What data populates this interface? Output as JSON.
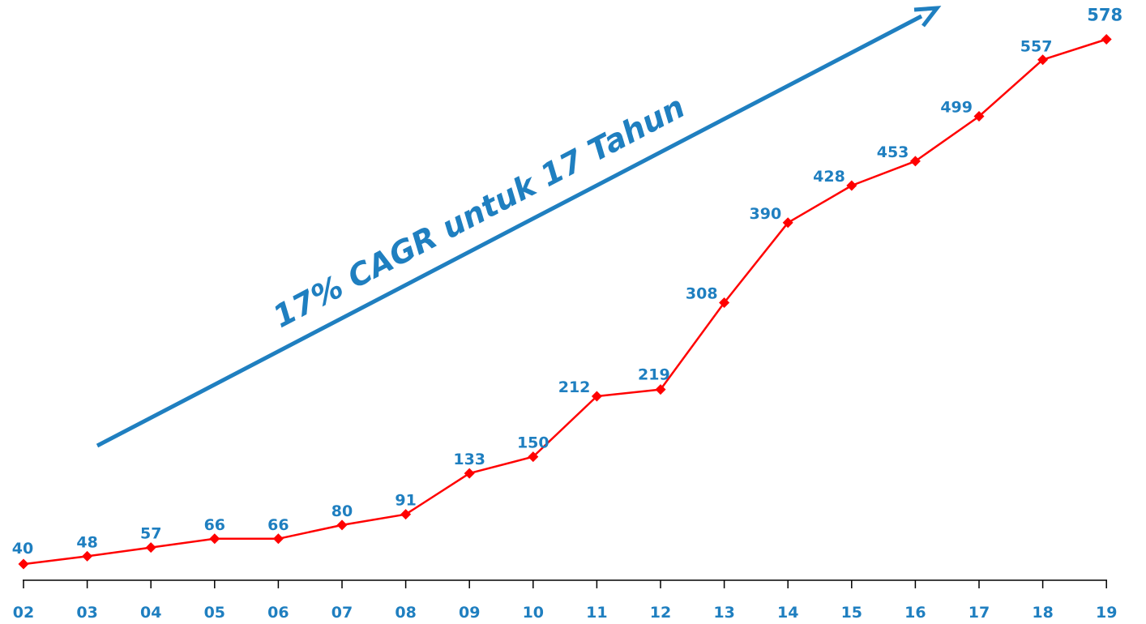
{
  "chart_data": {
    "type": "line",
    "categories": [
      "02",
      "03",
      "04",
      "05",
      "06",
      "07",
      "08",
      "09",
      "10",
      "11",
      "12",
      "13",
      "14",
      "15",
      "16",
      "17",
      "18",
      "19"
    ],
    "values": [
      40,
      48,
      57,
      66,
      66,
      80,
      91,
      133,
      150,
      212,
      219,
      308,
      390,
      428,
      453,
      499,
      557,
      578
    ],
    "annotation": "17% CAGR untuk 17 Tahun",
    "colors": {
      "line": "#FF0000",
      "marker": "#FF0000",
      "labels": "#1F7FC0",
      "arrow": "#1F7FC0",
      "axis": "#000000"
    },
    "marker": "diamond",
    "grid": false,
    "legend": "none"
  }
}
